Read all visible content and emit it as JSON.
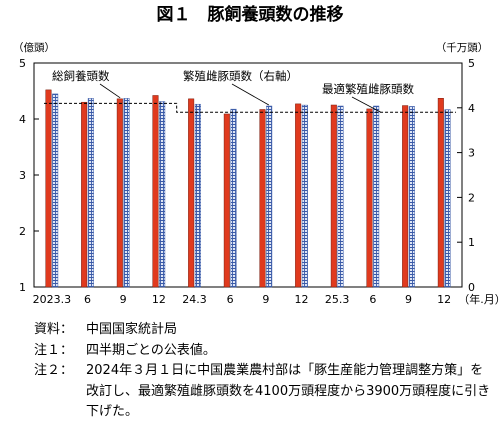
{
  "chart_data": {
    "type": "bar",
    "title": "図１　豚飼養頭数の推移",
    "left_axis_unit": "（億頭）",
    "right_axis_unit": "（千万頭）",
    "x_axis_unit": "（年.月）",
    "left_ticks": [
      "5",
      "4",
      "3",
      "2",
      "1"
    ],
    "right_ticks": [
      "5",
      "4",
      "3",
      "2",
      "1",
      "0"
    ],
    "ylim_left": [
      1,
      5
    ],
    "ylim_right": [
      0,
      5
    ],
    "categories": [
      "2023.3",
      "6",
      "9",
      "12",
      "24.3",
      "6",
      "9",
      "12",
      "25.3",
      "6",
      "9",
      "12"
    ],
    "series": [
      {
        "name": "総飼養頭数",
        "axis": "left",
        "color": "#e03a1e",
        "values": [
          4.52,
          4.3,
          4.36,
          4.42,
          4.36,
          4.09,
          4.17,
          4.27,
          4.25,
          4.18,
          4.24,
          4.37
        ]
      },
      {
        "name": "繁殖雌豚頭数（右軸）",
        "axis": "right",
        "color": "#3a5aa8",
        "values": [
          4.31,
          4.21,
          4.21,
          4.14,
          4.08,
          3.97,
          4.04,
          4.06,
          4.04,
          4.04,
          4.03,
          3.96
        ]
      },
      {
        "name": "最適繁殖雌豚頭数",
        "axis": "right",
        "type": "line",
        "style": "dashed",
        "values": [
          4.1,
          4.1,
          4.1,
          4.1,
          3.9,
          3.9,
          3.9,
          3.9,
          3.9,
          3.9,
          3.9,
          3.9
        ]
      }
    ],
    "grid": false
  },
  "notes": [
    {
      "label": "資料：",
      "text": "中国国家統計局"
    },
    {
      "label": "注１：",
      "text": "四半期ごとの公表値。"
    },
    {
      "label": "注２：",
      "text": "2024年３月１日に中国農業農村部は「豚生産能力管理調整方策」を改訂し、最適繁殖雌豚頭数を4100万頭程度から3900万頭程度に引き下げた。"
    }
  ]
}
